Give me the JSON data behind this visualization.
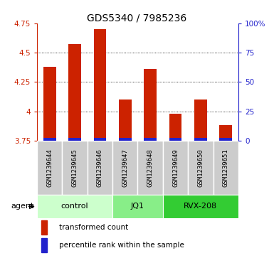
{
  "title": "GDS5340 / 7985236",
  "samples": [
    "GSM1239644",
    "GSM1239645",
    "GSM1239646",
    "GSM1239647",
    "GSM1239648",
    "GSM1239649",
    "GSM1239650",
    "GSM1239651"
  ],
  "transformed_counts": [
    4.38,
    4.57,
    4.7,
    4.1,
    4.36,
    3.98,
    4.1,
    3.88
  ],
  "percentile_ranks_pct": [
    6,
    7,
    7,
    5,
    6,
    5,
    6,
    5
  ],
  "bar_bottom": 3.75,
  "ylim": [
    3.75,
    4.75
  ],
  "yticks": [
    3.75,
    4.0,
    4.25,
    4.5,
    4.75
  ],
  "ytick_labels": [
    "3.75",
    "4",
    "4.25",
    "4.5",
    "4.75"
  ],
  "right_yticks_pct": [
    0,
    25,
    50,
    75,
    100
  ],
  "right_ytick_labels": [
    "0",
    "25",
    "50",
    "75",
    "100%"
  ],
  "grid_lines": [
    4.0,
    4.25,
    4.5
  ],
  "agent_groups": [
    {
      "label": "control",
      "start": 0,
      "end": 2,
      "color": "#ccffcc"
    },
    {
      "label": "JQ1",
      "start": 3,
      "end": 4,
      "color": "#88ee88"
    },
    {
      "label": "RVX-208",
      "start": 5,
      "end": 7,
      "color": "#33cc33"
    }
  ],
  "red_color": "#cc2200",
  "blue_color": "#2222cc",
  "grey_color": "#cccccc",
  "plot_bg": "#ffffff",
  "legend_items": [
    "transformed count",
    "percentile rank within the sample"
  ],
  "bar_width": 0.5,
  "blue_bar_height": 0.025
}
